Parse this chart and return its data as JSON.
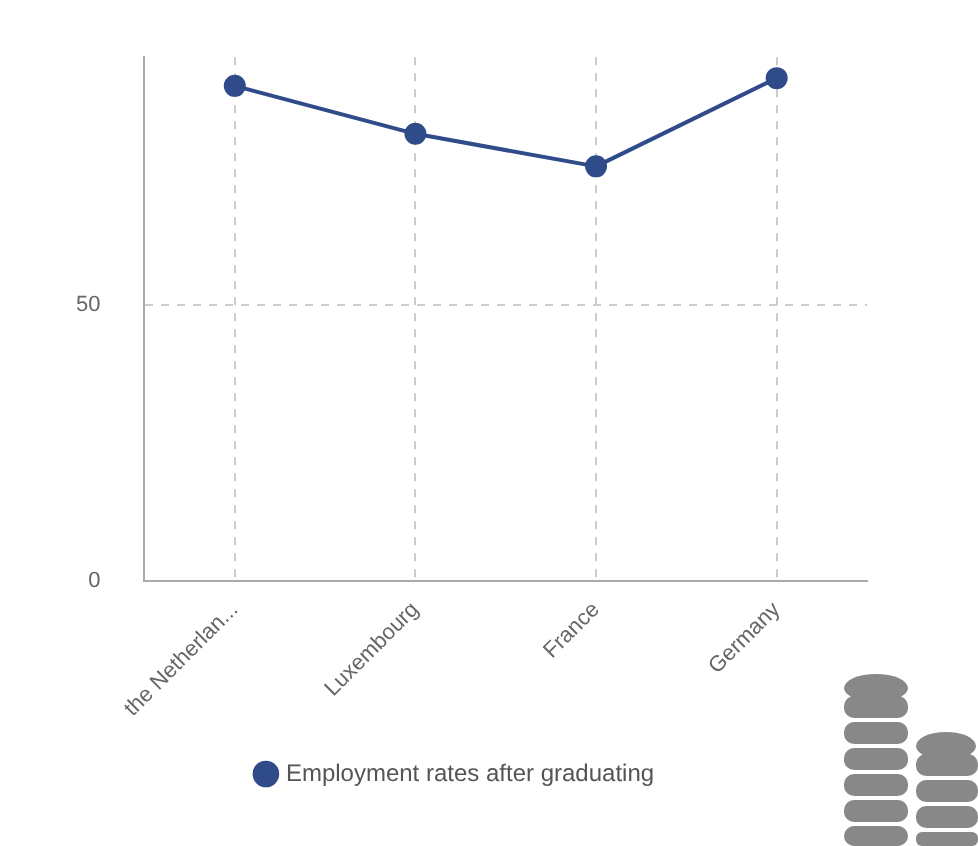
{
  "chart_data": {
    "type": "line",
    "categories": [
      "the Netherlan...",
      "Luxembourg",
      "France",
      "Germany"
    ],
    "series": [
      {
        "name": "Employment rates after graduating",
        "color": "#2f4b8a",
        "values": [
          89.8,
          81.1,
          75.2,
          91.2
        ]
      }
    ],
    "ylim": [
      0,
      95
    ],
    "yticks": [
      0,
      50
    ],
    "grid": true,
    "legend": "bottom",
    "marker": "circle",
    "line_style": "solid"
  }
}
